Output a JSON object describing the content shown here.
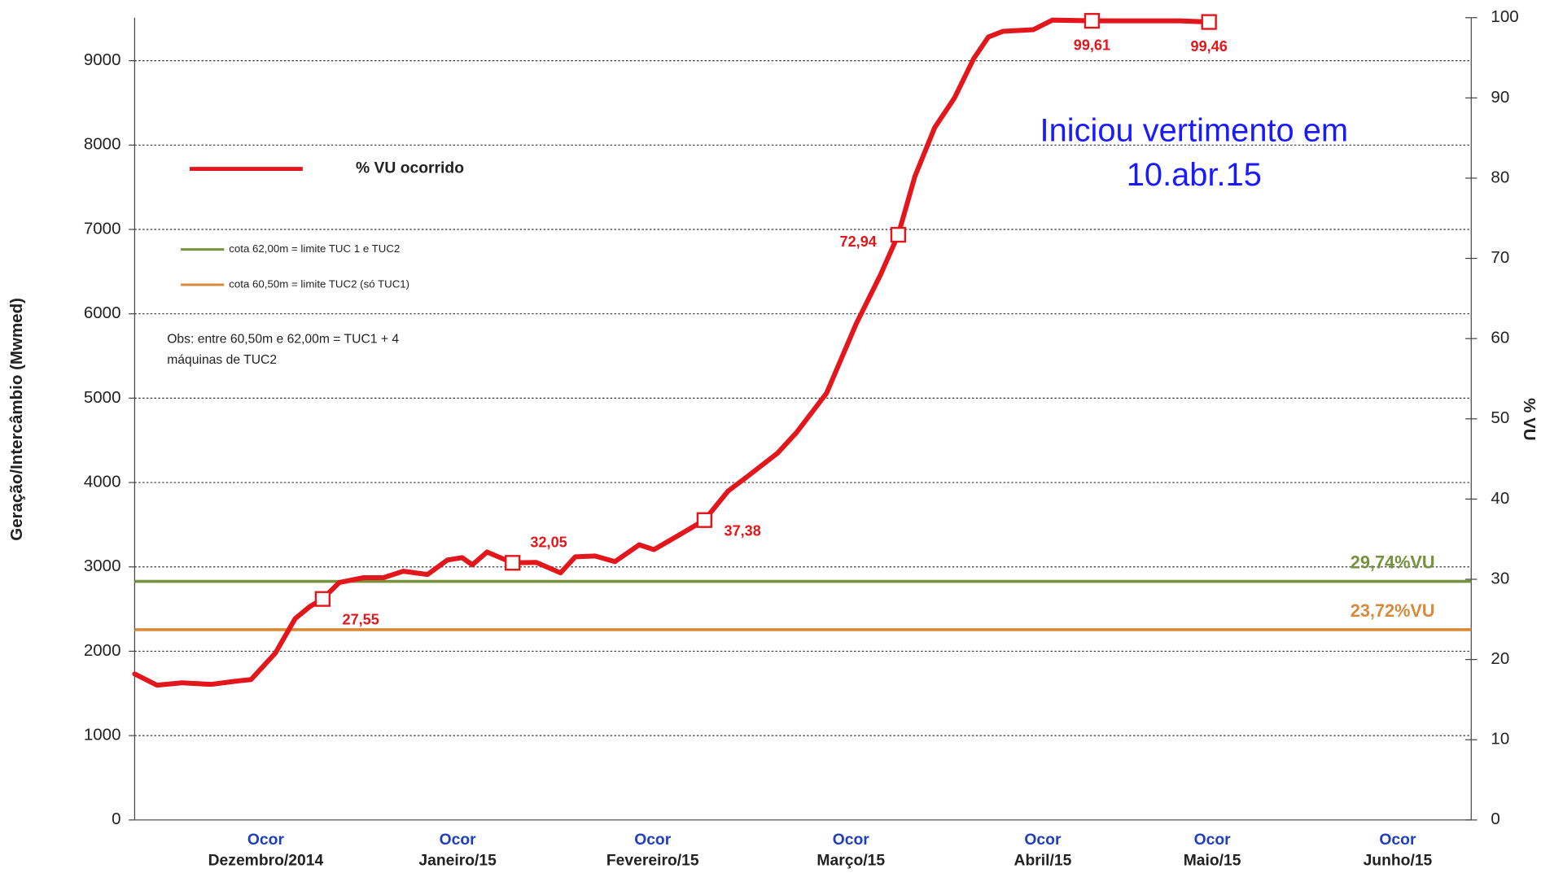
{
  "chart_data": {
    "type": "line",
    "y_axis_label": "Geração/Intercâmbio (Mwmed)",
    "y2_axis_label": "% VU",
    "ylim": [
      0,
      9510
    ],
    "yticks": [
      0,
      1000,
      2000,
      3000,
      4000,
      5000,
      6000,
      7000,
      8000,
      9000
    ],
    "y2lim": [
      0,
      100
    ],
    "y2ticks": [
      0,
      10,
      20,
      30,
      40,
      50,
      60,
      70,
      80,
      90,
      100
    ],
    "xlim": [
      0,
      209
    ],
    "xticks": [
      {
        "value": 20.5,
        "label": "Dezembro/2014"
      },
      {
        "value": 50.5,
        "label": "Janeiro/15"
      },
      {
        "value": 81,
        "label": "Fevereiro/15"
      },
      {
        "value": 112,
        "label": "Março/15"
      },
      {
        "value": 142,
        "label": "Abril/15"
      },
      {
        "value": 168.5,
        "label": "Maio/15"
      },
      {
        "value": 197.5,
        "label": "Junho/15"
      }
    ],
    "xtick_headers": [
      "Ocor",
      "Ocor",
      "Ocor",
      "Ocor",
      "Ocor",
      "Ocor",
      "Ocor"
    ],
    "grid": true,
    "series": [
      {
        "name": "% VU ocorrido",
        "color": "#e3161b",
        "axis": "y2",
        "x": [
          0,
          3.5,
          7.4,
          12,
          15.8,
          18.2,
          22,
          25.1,
          27.4,
          29.4,
          32,
          35.8,
          38.9,
          42,
          45.8,
          48.9,
          51.2,
          52.8,
          55.1,
          59.1,
          62.8,
          66.6,
          68.9,
          72,
          75.1,
          78.9,
          81.2,
          85.1,
          89.1,
          92.8,
          95.8,
          100.5,
          103.5,
          108.2,
          112.8,
          116.6,
          119.4,
          122,
          125.1,
          128.2,
          131.2,
          133.5,
          135.8,
          140.5,
          143.5,
          149.7,
          154.3,
          163.5,
          168
        ],
        "values": [
          18.2,
          16.8,
          17.1,
          16.9,
          17.3,
          17.5,
          20.8,
          25.1,
          26.6,
          27.55,
          29.6,
          30.2,
          30.2,
          31.0,
          30.6,
          32.4,
          32.7,
          31.8,
          33.4,
          32.05,
          32.1,
          30.8,
          32.8,
          32.9,
          32.2,
          34.3,
          33.7,
          35.5,
          37.38,
          41.0,
          42.8,
          45.7,
          48.3,
          53.2,
          61.8,
          67.9,
          72.94,
          80.2,
          86.3,
          90.0,
          94.9,
          97.6,
          98.3,
          98.5,
          99.7,
          99.61,
          99.6,
          99.6,
          99.46
        ]
      }
    ],
    "markers": {
      "x": [
        29.4,
        59.1,
        89.1,
        119.4,
        149.7,
        168
      ],
      "values": [
        27.55,
        32.05,
        37.38,
        72.94,
        99.61,
        99.46
      ],
      "value_labels": [
        "27,55",
        "32,05",
        "37,38",
        "72,94",
        "99,61",
        "99,46"
      ]
    },
    "reference_lines": [
      {
        "name": "cota 62,00m = limite TUC 1 e TUC2",
        "color": "#76923c",
        "axis": "y2",
        "value": 29.74,
        "label": "29,74%VU"
      },
      {
        "name": "cota 60,50m = limite TUC2 (só TUC1)",
        "color": "#d68b3c",
        "axis": "y2",
        "value": 23.72,
        "label": "23,72%VU"
      }
    ],
    "note": [
      "Obs: entre 60,50m e 62,00m = TUC1 + 4",
      "máquinas de TUC2"
    ],
    "annotation": [
      "Iniciou vertimento em",
      "10.abr.15"
    ]
  }
}
